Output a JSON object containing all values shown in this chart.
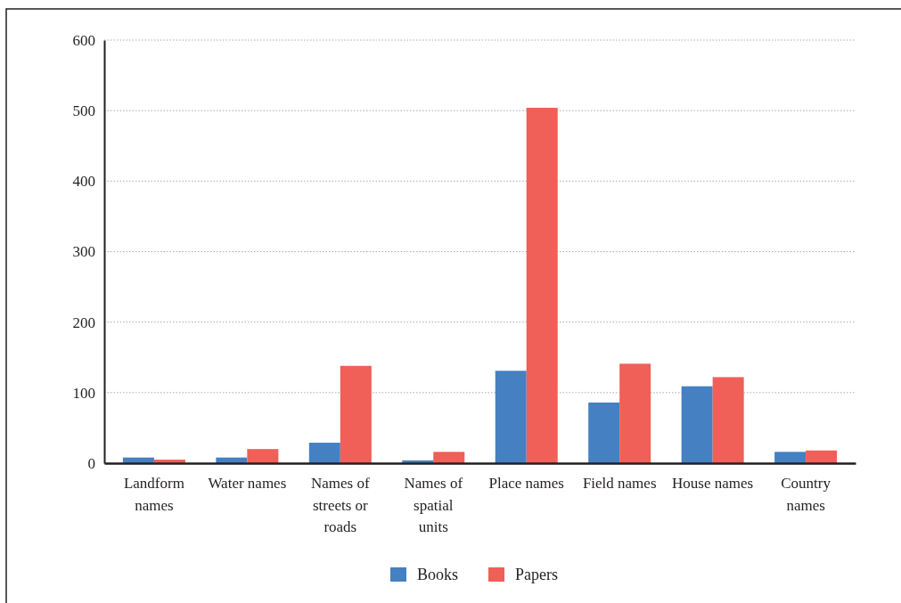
{
  "chart_data": {
    "type": "bar",
    "categories": [
      "Landform names",
      "Water names",
      "Names of streets or roads",
      "Names of spatial units",
      "Place names",
      "Field names",
      "House names",
      "Country names"
    ],
    "series": [
      {
        "name": "Books",
        "color": "#4580c2",
        "values": [
          8,
          8,
          29,
          4,
          131,
          86,
          109,
          16
        ]
      },
      {
        "name": "Papers",
        "color": "#f05f58",
        "values": [
          5,
          20,
          138,
          16,
          504,
          141,
          122,
          18
        ]
      }
    ],
    "ylim": [
      0,
      600
    ],
    "yticks": [
      0,
      100,
      200,
      300,
      400,
      500,
      600
    ],
    "grid": "y",
    "legend": "bottom"
  }
}
